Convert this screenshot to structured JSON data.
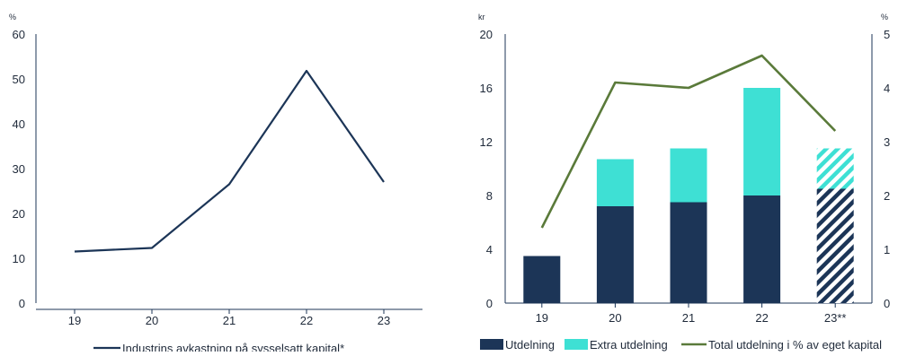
{
  "colors": {
    "navy": "#1c3557",
    "teal": "#3ee0d4",
    "green": "#5a7a3a",
    "axis": "#1c3557"
  },
  "chart_data": [
    {
      "type": "line",
      "x": [
        "19",
        "20",
        "21",
        "22",
        "23"
      ],
      "series": [
        {
          "name": "Industrins avkastning på sysselsatt kapital*",
          "values": [
            11.5,
            12.3,
            26.5,
            51.8,
            27
          ]
        }
      ],
      "ylabel": "%",
      "ylim": [
        0,
        60
      ],
      "yticks": [
        "0",
        "10",
        "20",
        "30",
        "40",
        "50",
        "60"
      ],
      "legend": "bottom"
    },
    {
      "type": "bar",
      "categories": [
        "19",
        "20",
        "21",
        "22",
        "23**"
      ],
      "series": [
        {
          "name": "Utdelning",
          "values": [
            3.5,
            7.2,
            7.5,
            8.0,
            8.5
          ]
        },
        {
          "name": "Extra utdelning",
          "values": [
            0,
            3.5,
            4.0,
            8.0,
            3.0
          ]
        },
        {
          "name": "Total utdelning i % av eget kapital",
          "values": [
            1.4,
            4.1,
            4.0,
            4.6,
            3.2
          ],
          "axis": "right"
        }
      ],
      "hatched_category": "23**",
      "ylabel": "kr",
      "ylim": [
        0,
        20
      ],
      "yticks": [
        "0",
        "4",
        "8",
        "12",
        "16",
        "20"
      ],
      "y2label": "%",
      "y2lim": [
        0,
        5
      ],
      "y2ticks": [
        "0",
        "1",
        "2",
        "3",
        "4",
        "5"
      ],
      "legend": "bottom"
    }
  ]
}
